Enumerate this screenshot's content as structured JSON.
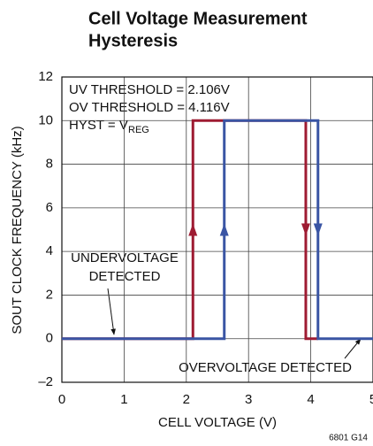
{
  "chart_data": {
    "type": "line",
    "title": [
      "Cell Voltage Measurement",
      "Hysteresis"
    ],
    "xlabel": "CELL VOLTAGE (V)",
    "ylabel": "SOUT CLOCK FREQUENCY (kHz)",
    "xlim": [
      0,
      5
    ],
    "xticks": [
      0,
      1,
      2,
      3,
      4,
      5
    ],
    "ylim": [
      -2,
      12
    ],
    "yticks": [
      {
        "value": -2,
        "label": "–2"
      },
      0,
      2,
      4,
      6,
      8,
      10,
      12
    ],
    "grid": true,
    "series": [
      {
        "color": "#9e1b32",
        "x": [
          0,
          2.106,
          2.106,
          3.92,
          3.92,
          4.116
        ],
        "y": [
          0,
          0,
          10,
          10,
          0,
          0
        ]
      },
      {
        "color": "#3a55a4",
        "x": [
          0,
          2.61,
          2.61,
          4.116,
          4.116,
          5
        ],
        "y": [
          0,
          0,
          10,
          10,
          0,
          0
        ]
      }
    ],
    "annotations": [
      "UV THRESHOLD = 2.106V",
      "OV THRESHOLD = 4.116V",
      "HYST = V",
      "REG",
      "UNDERVOLTAGE",
      "DETECTED",
      "OVERVOLTAGE DETECTED"
    ],
    "footnote": "6801 G14"
  }
}
